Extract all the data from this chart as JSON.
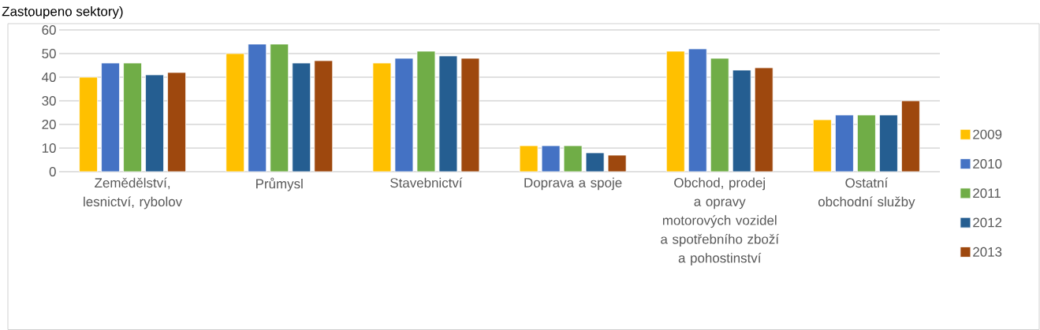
{
  "chart_data": {
    "type": "bar",
    "title": "Zastoupeno sektory)",
    "categories": [
      "Zemědělství, lesnictví, rybolov",
      "Průmysl",
      "Stavebnictví",
      "Doprava a spoje",
      "Obchod, prodej a opravy motorových vozidel a spotřebního zboží a pohostinství",
      "Ostatní obchodní služby"
    ],
    "series": [
      {
        "name": "2009",
        "color": "#ffc000",
        "values": [
          40,
          50,
          46,
          11,
          51,
          22
        ]
      },
      {
        "name": "2010",
        "color": "#4472c4",
        "values": [
          46,
          54,
          48,
          11,
          52,
          24
        ]
      },
      {
        "name": "2011",
        "color": "#70ad47",
        "values": [
          46,
          54,
          51,
          11,
          48,
          24
        ]
      },
      {
        "name": "2012",
        "color": "#255e91",
        "values": [
          41,
          46,
          49,
          8,
          43,
          24
        ]
      },
      {
        "name": "2013",
        "color": "#9e480e",
        "values": [
          42,
          47,
          48,
          7,
          44,
          30
        ]
      }
    ],
    "ylim": [
      0,
      60
    ],
    "yticks": [
      0,
      10,
      20,
      30,
      40,
      50,
      60
    ],
    "grid": "y",
    "legend": "right"
  }
}
